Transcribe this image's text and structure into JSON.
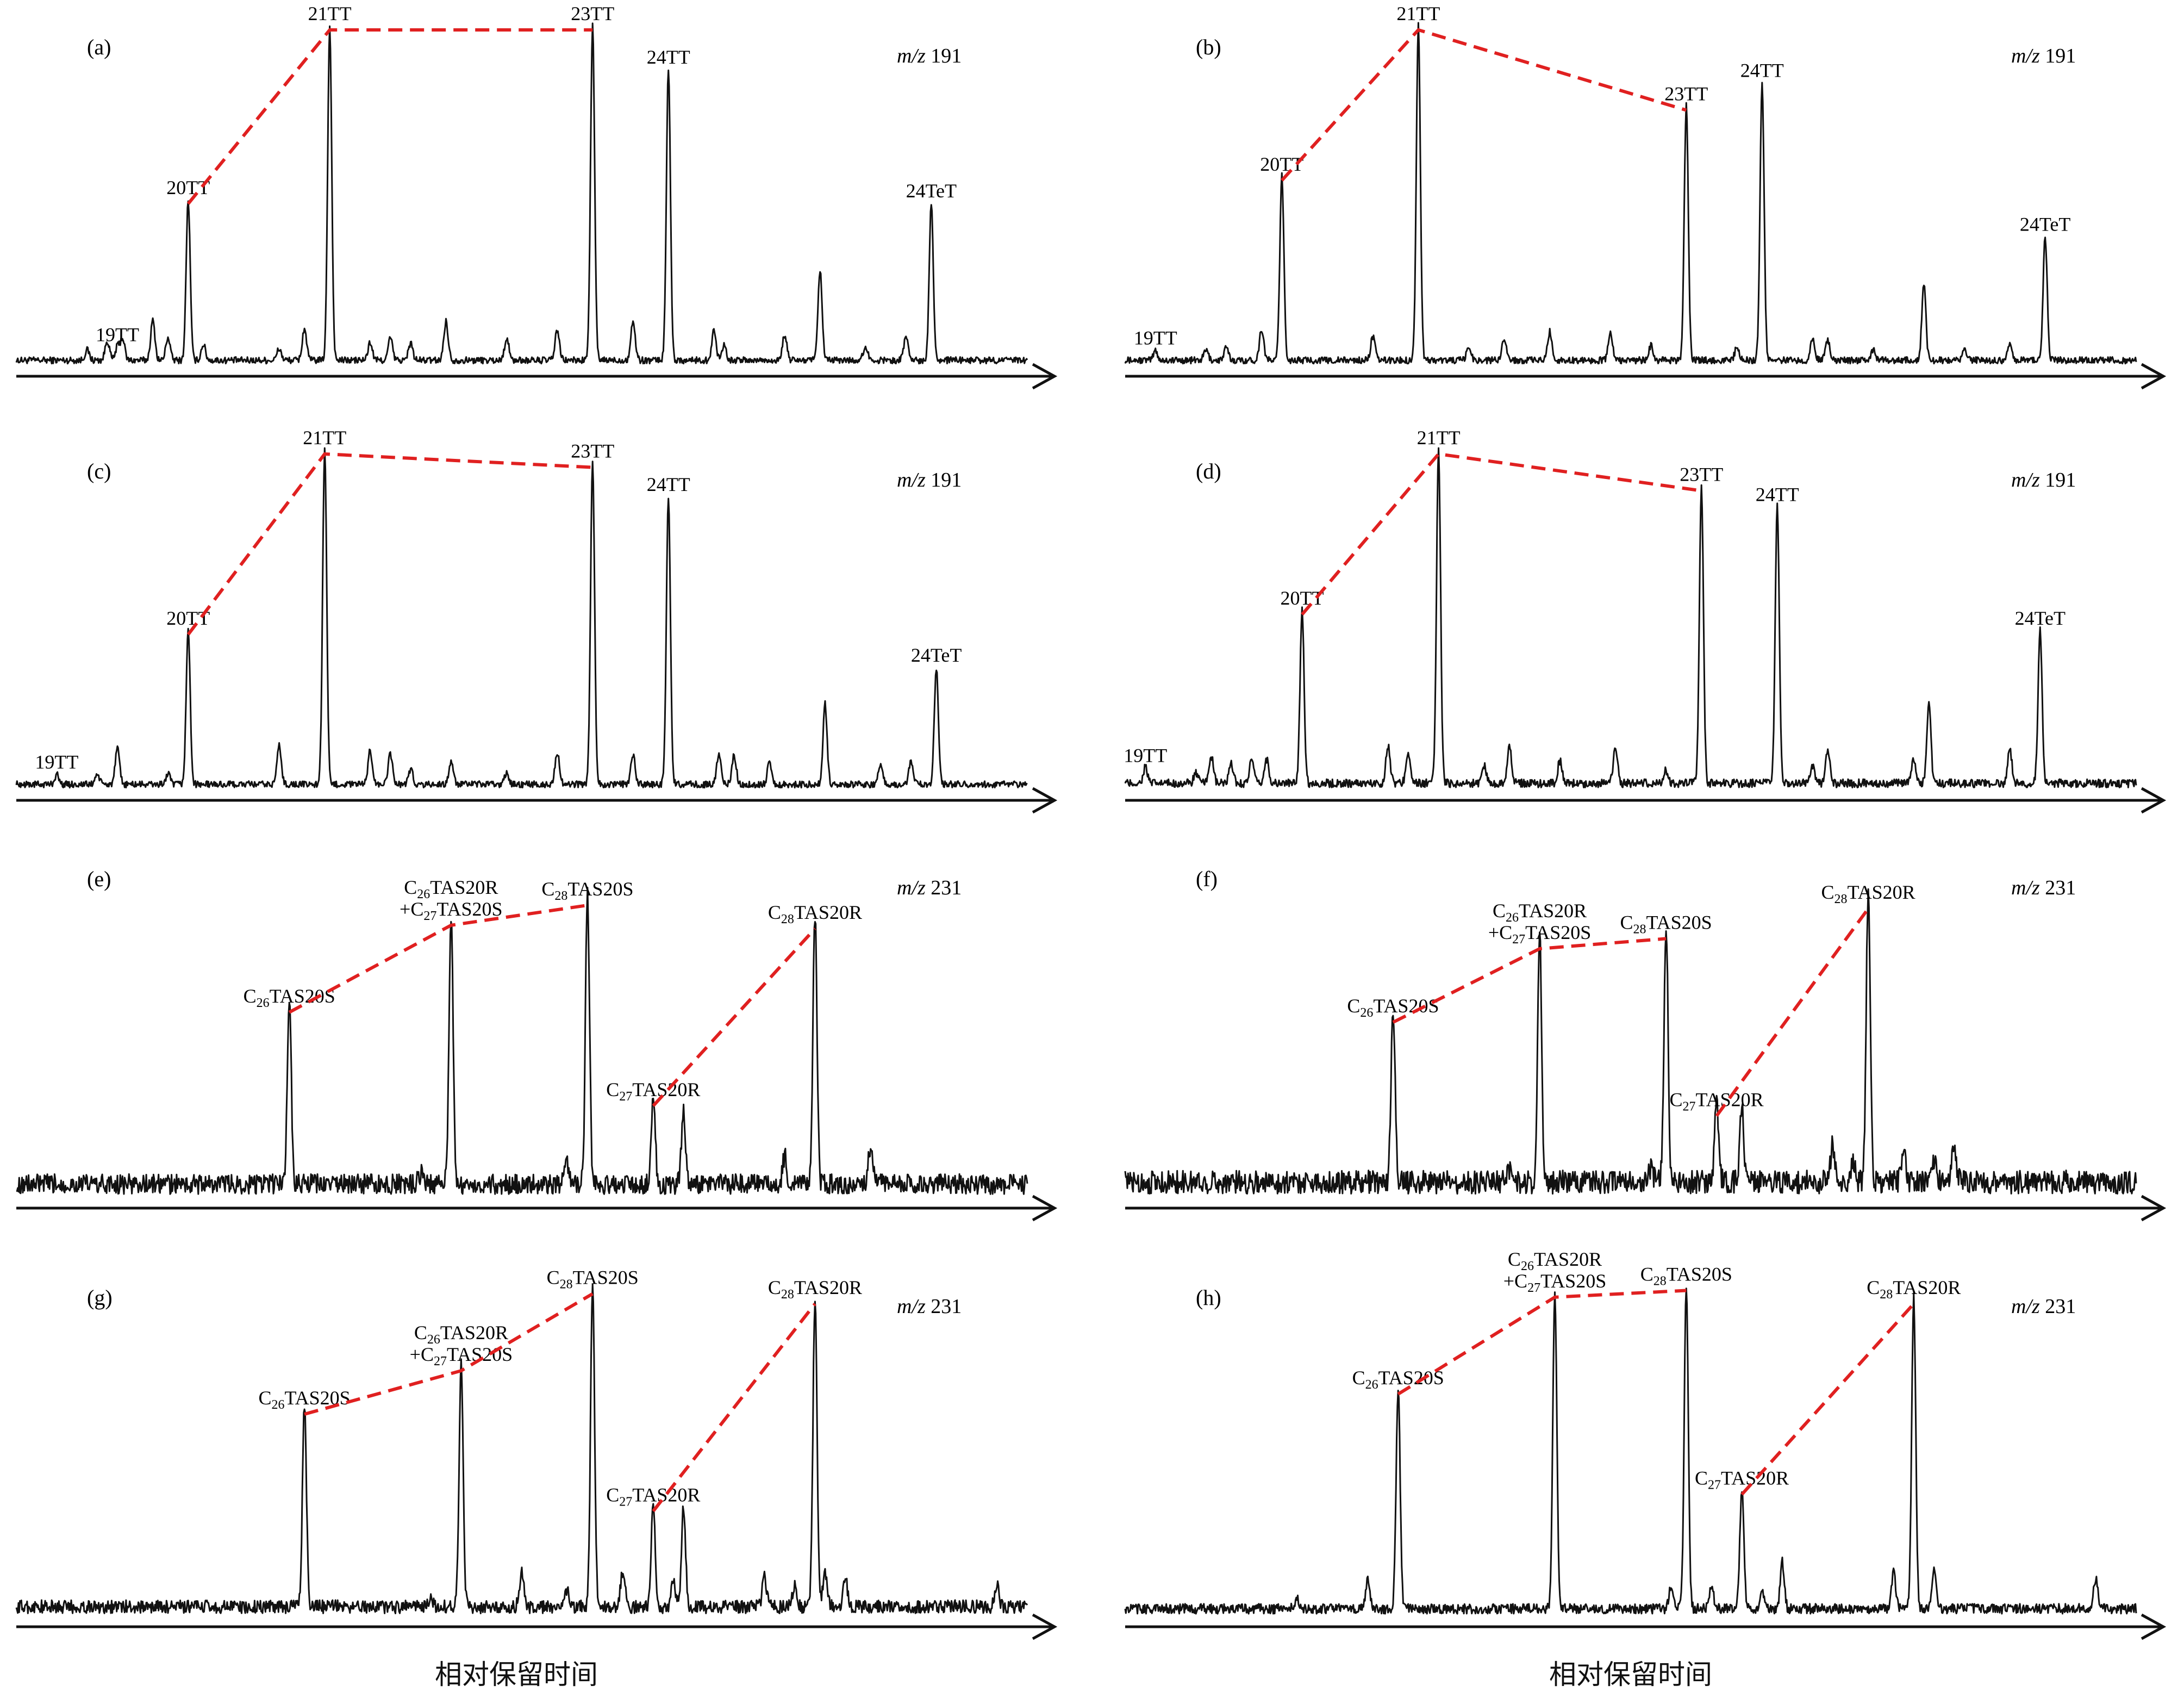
{
  "figure": {
    "x_axis_label": "相对保留时间"
  },
  "colors": {
    "trace": "#111111",
    "trend_line": "#e02020",
    "axis": "#111111"
  },
  "chart_data": [
    {
      "type": "line",
      "panel": "(a)",
      "ion": "m/z 191",
      "peaks": [
        {
          "label": "19TT",
          "x": 0.1,
          "y": 0.04
        },
        {
          "label": "20TT",
          "x": 0.17,
          "y": 0.48
        },
        {
          "label": "21TT",
          "x": 0.31,
          "y": 1.0
        },
        {
          "label": "23TT",
          "x": 0.57,
          "y": 1.0
        },
        {
          "label": "24TT",
          "x": 0.645,
          "y": 0.87
        },
        {
          "label": "",
          "x": 0.795,
          "y": 0.27
        },
        {
          "label": "24TeT",
          "x": 0.905,
          "y": 0.47
        }
      ],
      "trend": [
        "20TT",
        "21TT",
        "23TT"
      ],
      "minor_peaks_x": [
        0.07,
        0.09,
        0.105,
        0.135,
        0.15,
        0.185,
        0.26,
        0.285,
        0.35,
        0.37,
        0.39,
        0.425,
        0.485,
        0.535,
        0.61,
        0.69,
        0.7,
        0.76,
        0.84,
        0.88
      ],
      "noise": 0.02
    },
    {
      "type": "line",
      "panel": "(b)",
      "ion": "m/z 191",
      "peaks": [
        {
          "label": "19TT",
          "x": 0.03,
          "y": 0.03
        },
        {
          "label": "20TT",
          "x": 0.155,
          "y": 0.55
        },
        {
          "label": "21TT",
          "x": 0.29,
          "y": 1.0
        },
        {
          "label": "23TT",
          "x": 0.555,
          "y": 0.76
        },
        {
          "label": "24TT",
          "x": 0.63,
          "y": 0.83
        },
        {
          "label": "",
          "x": 0.79,
          "y": 0.23
        },
        {
          "label": "24TeT",
          "x": 0.91,
          "y": 0.37
        }
      ],
      "trend": [
        "20TT",
        "21TT",
        "23TT"
      ],
      "minor_peaks_x": [
        0.08,
        0.1,
        0.135,
        0.245,
        0.34,
        0.375,
        0.42,
        0.48,
        0.52,
        0.605,
        0.68,
        0.695,
        0.74,
        0.83,
        0.875
      ],
      "noise": 0.02
    },
    {
      "type": "line",
      "panel": "(c)",
      "ion": "m/z 191",
      "peaks": [
        {
          "label": "19TT",
          "x": 0.04,
          "y": 0.03
        },
        {
          "label": "20TT",
          "x": 0.17,
          "y": 0.46
        },
        {
          "label": "21TT",
          "x": 0.305,
          "y": 1.0
        },
        {
          "label": "23TT",
          "x": 0.57,
          "y": 0.96
        },
        {
          "label": "24TT",
          "x": 0.645,
          "y": 0.86
        },
        {
          "label": "",
          "x": 0.8,
          "y": 0.24
        },
        {
          "label": "24TeT",
          "x": 0.91,
          "y": 0.35
        }
      ],
      "trend": [
        "20TT",
        "21TT",
        "23TT"
      ],
      "minor_peaks_x": [
        0.08,
        0.1,
        0.15,
        0.26,
        0.35,
        0.37,
        0.39,
        0.43,
        0.485,
        0.535,
        0.61,
        0.695,
        0.71,
        0.745,
        0.855,
        0.885
      ],
      "noise": 0.02
    },
    {
      "type": "line",
      "panel": "(d)",
      "ion": "m/z 191",
      "peaks": [
        {
          "label": "19TT",
          "x": 0.02,
          "y": 0.05
        },
        {
          "label": "20TT",
          "x": 0.175,
          "y": 0.52
        },
        {
          "label": "21TT",
          "x": 0.31,
          "y": 1.0
        },
        {
          "label": "23TT",
          "x": 0.57,
          "y": 0.89
        },
        {
          "label": "24TT",
          "x": 0.645,
          "y": 0.83
        },
        {
          "label": "",
          "x": 0.795,
          "y": 0.25
        },
        {
          "label": "24TeT",
          "x": 0.905,
          "y": 0.46
        }
      ],
      "trend": [
        "20TT",
        "21TT",
        "23TT"
      ],
      "minor_peaks_x": [
        0.07,
        0.085,
        0.105,
        0.125,
        0.14,
        0.26,
        0.28,
        0.355,
        0.38,
        0.43,
        0.485,
        0.535,
        0.68,
        0.695,
        0.78,
        0.875
      ],
      "noise": 0.025
    },
    {
      "type": "line",
      "panel": "(e)",
      "ion": "m/z 231",
      "peaks": [
        {
          "label": "C26TAS20S",
          "x": 0.27,
          "y": 0.55
        },
        {
          "label": "C26TAS20R\n+C27TAS20S",
          "x": 0.43,
          "y": 0.81
        },
        {
          "label": "C28TAS20S",
          "x": 0.565,
          "y": 0.87
        },
        {
          "label": "C27TAS20R",
          "x": 0.63,
          "y": 0.27
        },
        {
          "label": "",
          "x": 0.66,
          "y": 0.22
        },
        {
          "label": "C28TAS20R",
          "x": 0.79,
          "y": 0.8
        }
      ],
      "trend_groups": [
        [
          "C26TAS20S",
          "C26TAS20R\n+C27TAS20S",
          "C28TAS20S"
        ],
        [
          "C27TAS20R",
          "C28TAS20R"
        ]
      ],
      "minor_peaks_x": [
        0.4,
        0.545,
        0.76,
        0.845
      ],
      "noise": 0.06
    },
    {
      "type": "line",
      "panel": "(f)",
      "ion": "m/z 231",
      "peaks": [
        {
          "label": "C26TAS20S",
          "x": 0.265,
          "y": 0.52
        },
        {
          "label": "C26TAS20R\n+C27TAS20S",
          "x": 0.41,
          "y": 0.74
        },
        {
          "label": "C28TAS20S",
          "x": 0.535,
          "y": 0.77
        },
        {
          "label": "C27TAS20R",
          "x": 0.585,
          "y": 0.24
        },
        {
          "label": "",
          "x": 0.61,
          "y": 0.22
        },
        {
          "label": "C28TAS20R",
          "x": 0.735,
          "y": 0.86
        }
      ],
      "trend_groups": [
        [
          "C26TAS20S",
          "C26TAS20R\n+C27TAS20S",
          "C28TAS20S"
        ],
        [
          "C27TAS20R",
          "C28TAS20R"
        ]
      ],
      "minor_peaks_x": [
        0.38,
        0.52,
        0.7,
        0.72,
        0.77,
        0.8,
        0.82
      ],
      "noise": 0.07
    },
    {
      "type": "line",
      "panel": "(g)",
      "ion": "m/z 231",
      "peaks": [
        {
          "label": "C26TAS20S",
          "x": 0.285,
          "y": 0.6
        },
        {
          "label": "C26TAS20R\n+C27TAS20S",
          "x": 0.44,
          "y": 0.73
        },
        {
          "label": "C28TAS20S",
          "x": 0.57,
          "y": 0.96
        },
        {
          "label": "C27TAS20R",
          "x": 0.63,
          "y": 0.31
        },
        {
          "label": "",
          "x": 0.66,
          "y": 0.3
        },
        {
          "label": "C28TAS20R",
          "x": 0.79,
          "y": 0.93
        }
      ],
      "trend_groups": [
        [
          "C26TAS20S",
          "C26TAS20R\n+C27TAS20S",
          "C28TAS20S"
        ],
        [
          "C27TAS20R",
          "C28TAS20R"
        ]
      ],
      "minor_peaks_x": [
        0.41,
        0.5,
        0.545,
        0.6,
        0.65,
        0.74,
        0.77,
        0.8,
        0.82,
        0.97
      ],
      "noise": 0.04
    },
    {
      "type": "line",
      "panel": "(h)",
      "ion": "m/z 231",
      "peaks": [
        {
          "label": "C26TAS20S",
          "x": 0.27,
          "y": 0.66
        },
        {
          "label": "C26TAS20R\n+C27TAS20S",
          "x": 0.425,
          "y": 0.95
        },
        {
          "label": "C28TAS20S",
          "x": 0.555,
          "y": 0.97
        },
        {
          "label": "C27TAS20R",
          "x": 0.61,
          "y": 0.36
        },
        {
          "label": "",
          "x": 0.65,
          "y": 0.14
        },
        {
          "label": "C28TAS20R",
          "x": 0.78,
          "y": 0.93
        }
      ],
      "trend_groups": [
        [
          "C26TAS20S",
          "C26TAS20R\n+C27TAS20S",
          "C28TAS20S"
        ],
        [
          "C27TAS20R",
          "C28TAS20R"
        ]
      ],
      "minor_peaks_x": [
        0.17,
        0.24,
        0.54,
        0.58,
        0.63,
        0.76,
        0.8,
        0.96
      ],
      "noise": 0.03
    }
  ]
}
